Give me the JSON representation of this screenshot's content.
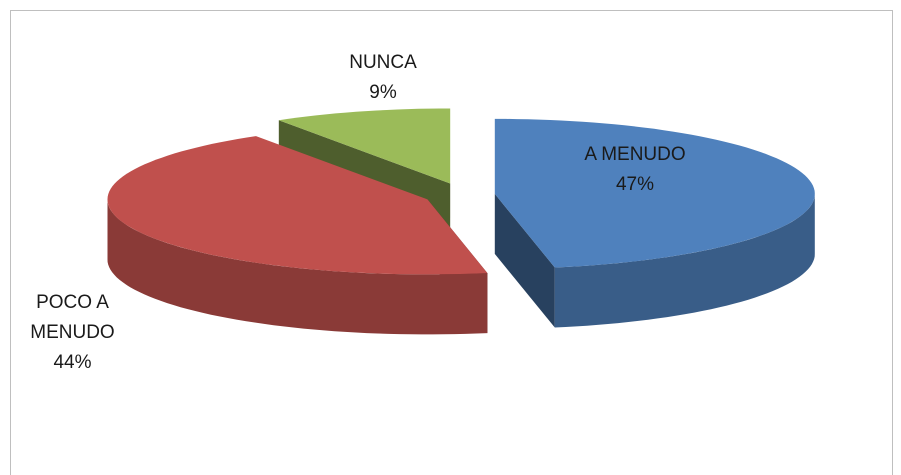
{
  "chart_data": {
    "type": "pie",
    "categories": [
      "A MENUDO",
      "POCO A MENUDO",
      "NUNCA"
    ],
    "values": [
      47,
      44,
      9
    ],
    "value_labels": [
      "47%",
      "44%",
      "9%"
    ],
    "colors": [
      "#4f81bd",
      "#c0504d",
      "#9bbb59"
    ]
  }
}
